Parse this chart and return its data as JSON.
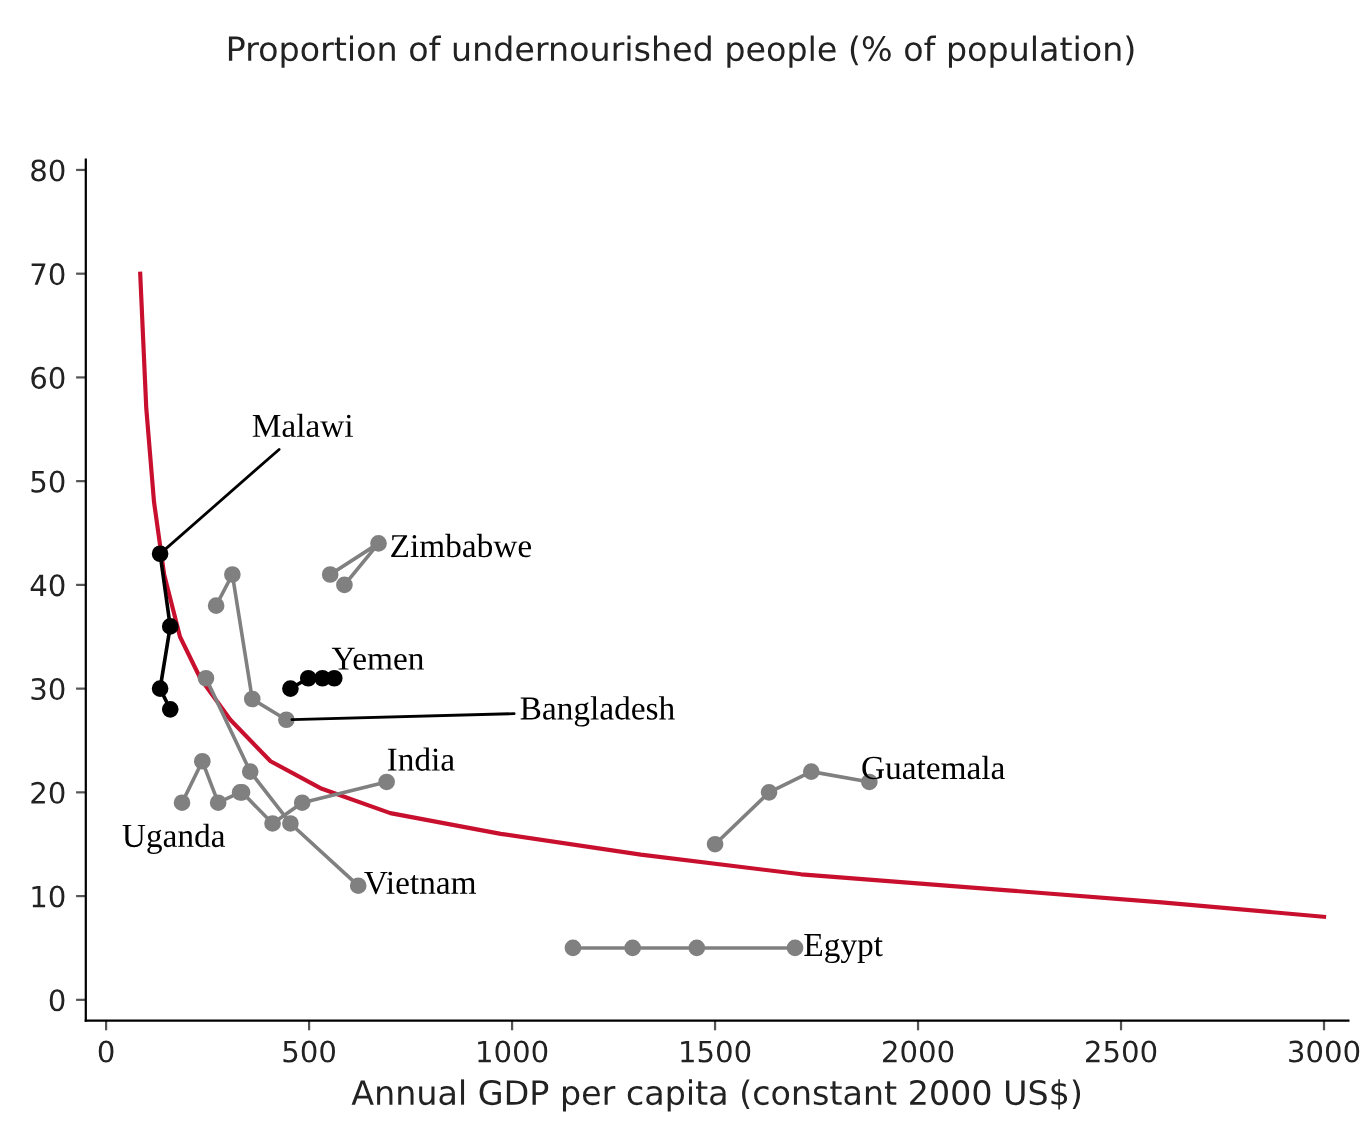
{
  "chart_data": {
    "type": "line",
    "title": "Proportion of undernourished people (% of population)",
    "xlabel": "Annual GDP per capita (constant 2000 US$)",
    "xlim": [
      -50,
      3060
    ],
    "ylim": [
      -2,
      81
    ],
    "xticks": [
      0,
      500,
      1000,
      1500,
      2000,
      2500,
      3000
    ],
    "yticks": [
      0,
      10,
      20,
      30,
      40,
      50,
      60,
      70,
      80
    ],
    "grid": false,
    "legend": false,
    "series": [
      {
        "color": "#c8102e",
        "marker": "none",
        "x": [
          84,
          99,
          118,
          143,
          182,
          232,
          306,
          405,
          528,
          700,
          972,
          1317,
          1712,
          2205,
          2600,
          3000
        ],
        "values": [
          70,
          57,
          48,
          41,
          35,
          31,
          27,
          23,
          20.4,
          18,
          16,
          14,
          12.1,
          10.6,
          9.4,
          8
        ]
      },
      {
        "name": "Malawi",
        "color": "#000000",
        "marker": "circle",
        "x": [
          133,
          158,
          133,
          158
        ],
        "values": [
          43,
          36,
          30,
          28
        ]
      },
      {
        "name": "Zimbabwe",
        "color": "#808080",
        "marker": "circle",
        "x": [
          552,
          671,
          587
        ],
        "values": [
          41,
          44,
          40
        ]
      },
      {
        "name": "Yemen",
        "color": "#000000",
        "marker": "circle",
        "x": [
          454,
          498,
          533,
          562
        ],
        "values": [
          30,
          31,
          31,
          31
        ]
      },
      {
        "name": "Bangladesh",
        "color": "#808080",
        "marker": "circle",
        "x": [
          271,
          311,
          360,
          444
        ],
        "values": [
          38,
          41,
          29,
          27
        ]
      },
      {
        "name": "India",
        "color": "#808080",
        "marker": "circle",
        "x": [
          335,
          410,
          483,
          691
        ],
        "values": [
          20,
          17,
          19,
          21
        ]
      },
      {
        "name": "Uganda",
        "color": "#808080",
        "marker": "circle",
        "x": [
          187,
          237,
          276,
          330
        ],
        "values": [
          19,
          23,
          19,
          20
        ]
      },
      {
        "name": "Vietnam",
        "color": "#808080",
        "marker": "circle",
        "x": [
          246,
          355,
          454,
          621
        ],
        "values": [
          31,
          22,
          17,
          11
        ]
      },
      {
        "name": "Guatemala",
        "color": "#808080",
        "marker": "circle",
        "x": [
          1500,
          1633,
          1737,
          1880
        ],
        "values": [
          15,
          20,
          22,
          21
        ]
      },
      {
        "name": "Egypt",
        "color": "#808080",
        "marker": "circle",
        "x": [
          1150,
          1297,
          1455,
          1697
        ],
        "values": [
          5,
          5,
          5,
          5
        ]
      }
    ]
  }
}
